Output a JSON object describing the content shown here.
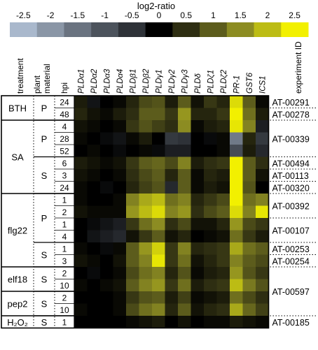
{
  "chart_data": {
    "type": "heatmap",
    "title": "log2-ratio",
    "colorbar": {
      "ticks": [
        "-2.5",
        "-2",
        "-1.5",
        "-1",
        "-0.5",
        "0",
        "0.5",
        "1",
        "1.5",
        "2",
        "2.5"
      ],
      "colors": [
        "#a9b8cc",
        "#8a96a6",
        "#6a7380",
        "#4c535c",
        "#2e3238",
        "#000000",
        "#2e2e12",
        "#5c5c1c",
        "#8c8c22",
        "#bcbc14",
        "#f2f000"
      ]
    },
    "column_headers": {
      "treatment": "treatment",
      "plant_material": "plant material",
      "hpi": "hpi",
      "experiment": "experiment ID"
    },
    "genes": [
      "PLDα1",
      "PLDα2",
      "PLDα3",
      "PLDα4",
      "PLDβ1",
      "PLDβ2",
      "PLDγ1",
      "PLDγ2",
      "PLDγ3",
      "PLDδ",
      "PLDζ1",
      "PLDζ2",
      "PR-1",
      "GST6",
      "ICS1"
    ],
    "treatments": [
      {
        "label": "BTH",
        "rows": 2
      },
      {
        "label": "SA",
        "rows": 6
      },
      {
        "label": "flg22",
        "rows": 6
      },
      {
        "label": "elf18",
        "rows": 2
      },
      {
        "label": "pep2",
        "rows": 2
      },
      {
        "label": "H₂O₂",
        "rows": 1
      }
    ],
    "materials": [
      {
        "label": "P",
        "rows": 2
      },
      {
        "label": "P",
        "rows": 3
      },
      {
        "label": "S",
        "rows": 3
      },
      {
        "label": "P",
        "rows": 4
      },
      {
        "label": "S",
        "rows": 2
      },
      {
        "label": "S",
        "rows": 2
      },
      {
        "label": "S",
        "rows": 2
      },
      {
        "label": "S",
        "rows": 1
      }
    ],
    "hpi": [
      "24",
      "48",
      "4",
      "28",
      "52",
      "6",
      "3",
      "24",
      "1",
      "2",
      "1",
      "4",
      "1",
      "3",
      "2",
      "10",
      "2",
      "10",
      "1"
    ],
    "experiments": [
      {
        "id": "AT-00291",
        "start": 0,
        "rows": 1
      },
      {
        "id": "AT-00278",
        "start": 1,
        "rows": 1
      },
      {
        "id": "AT-00339",
        "start": 2,
        "rows": 3
      },
      {
        "id": "AT-00494",
        "start": 5,
        "rows": 1
      },
      {
        "id": "AT-00113",
        "start": 6,
        "rows": 1
      },
      {
        "id": "AT-00320",
        "start": 7,
        "rows": 1
      },
      {
        "id": "AT-00392",
        "start": 8,
        "rows": 2
      },
      {
        "id": "AT-00107",
        "start": 10,
        "rows": 2
      },
      {
        "id": "AT-00253",
        "start": 12,
        "rows": 1
      },
      {
        "id": "AT-00254",
        "start": 13,
        "rows": 1
      },
      {
        "id": "AT-00597",
        "start": 14,
        "rows": 4
      },
      {
        "id": "AT-00185",
        "start": 18,
        "rows": 1
      }
    ],
    "values": [
      [
        0.3,
        -0.2,
        0.0,
        0.1,
        0.4,
        0.8,
        0.9,
        0.3,
        1.0,
        0.2,
        0.6,
        0.4,
        2.3,
        1.0,
        0.1
      ],
      [
        0.4,
        0.2,
        0.1,
        0.3,
        0.5,
        1.0,
        1.0,
        0.6,
        1.6,
        0.4,
        0.4,
        0.6,
        2.5,
        1.2,
        0.3
      ],
      [
        0.2,
        0.1,
        0.0,
        0.1,
        0.6,
        0.9,
        0.7,
        0.5,
        1.5,
        0.1,
        0.3,
        0.4,
        2.4,
        1.4,
        -0.3
      ],
      [
        0.1,
        0.0,
        -0.1,
        -0.2,
        0.1,
        0.3,
        0.0,
        -0.6,
        -0.5,
        0.0,
        -0.1,
        0.1,
        -1.6,
        0.4,
        -0.6
      ],
      [
        0.0,
        0.1,
        0.0,
        -0.1,
        0.0,
        0.1,
        -0.1,
        -0.3,
        -0.3,
        0.0,
        0.0,
        0.1,
        -0.9,
        0.3,
        -0.4
      ],
      [
        0.3,
        0.2,
        0.1,
        0.2,
        0.6,
        1.0,
        1.1,
        0.8,
        1.4,
        0.3,
        0.5,
        0.6,
        2.5,
        1.0,
        0.5
      ],
      [
        0.2,
        0.1,
        0.0,
        0.1,
        0.5,
        0.8,
        1.0,
        0.4,
        1.0,
        0.1,
        0.4,
        0.3,
        2.5,
        1.0,
        0.2
      ],
      [
        0.1,
        0.0,
        -0.1,
        0.0,
        0.4,
        0.7,
        0.9,
        -0.4,
        1.0,
        0.1,
        0.3,
        0.2,
        2.5,
        0.9,
        0.0
      ],
      [
        0.1,
        0.0,
        0.0,
        0.1,
        1.4,
        1.8,
        2.0,
        1.2,
        1.4,
        0.4,
        0.6,
        0.8,
        2.5,
        1.2,
        1.4
      ],
      [
        0.2,
        0.1,
        0.1,
        0.1,
        1.6,
        2.0,
        2.3,
        1.4,
        1.6,
        0.5,
        0.8,
        1.0,
        2.3,
        1.4,
        2.4
      ],
      [
        0.0,
        -0.1,
        -0.2,
        -0.3,
        0.6,
        1.2,
        1.5,
        0.5,
        0.8,
        0.2,
        0.2,
        0.4,
        1.6,
        0.8,
        0.6
      ],
      [
        0.0,
        -0.2,
        -0.3,
        -0.4,
        0.2,
        0.6,
        1.0,
        0.2,
        0.4,
        0.0,
        0.1,
        0.2,
        1.2,
        0.6,
        0.3
      ],
      [
        0.1,
        0.0,
        -0.1,
        0.1,
        1.0,
        1.6,
        2.2,
        0.6,
        1.4,
        0.4,
        0.5,
        0.6,
        1.8,
        1.2,
        1.0
      ],
      [
        0.2,
        0.1,
        0.0,
        0.2,
        1.0,
        1.4,
        2.4,
        0.6,
        1.2,
        0.2,
        0.4,
        0.6,
        1.4,
        1.0,
        0.8
      ],
      [
        0.0,
        -0.1,
        0.0,
        0.1,
        0.8,
        1.2,
        1.4,
        0.4,
        0.9,
        0.1,
        0.3,
        0.4,
        1.6,
        0.9,
        0.6
      ],
      [
        0.1,
        0.0,
        0.1,
        0.2,
        1.0,
        1.4,
        1.6,
        0.6,
        1.2,
        0.3,
        0.5,
        0.6,
        2.0,
        1.3,
        0.9
      ],
      [
        0.0,
        0.0,
        0.0,
        0.1,
        0.6,
        0.9,
        1.0,
        0.3,
        0.7,
        0.1,
        0.2,
        0.3,
        1.2,
        0.8,
        0.5
      ],
      [
        0.1,
        0.0,
        0.0,
        0.1,
        0.8,
        1.2,
        1.4,
        0.4,
        1.0,
        0.2,
        0.4,
        0.5,
        1.8,
        1.1,
        0.7
      ],
      [
        0.0,
        0.0,
        0.0,
        0.0,
        0.1,
        0.2,
        0.3,
        0.0,
        0.2,
        0.0,
        0.1,
        0.1,
        0.3,
        0.2,
        0.1
      ]
    ]
  }
}
